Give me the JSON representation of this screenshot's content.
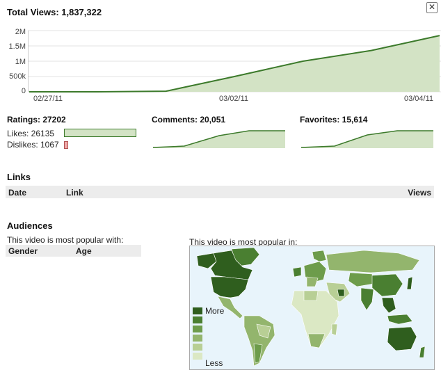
{
  "total_views": {
    "label": "Total Views: 1,837,322",
    "close_icon": "✕",
    "y_ticks": [
      "2M",
      "1.5M",
      "1M",
      "500k",
      "0"
    ],
    "x_ticks": [
      "02/27/11",
      "03/02/11",
      "03/04/11"
    ],
    "fill_color": "#d3e3c5",
    "line_color": "#3c7a2b"
  },
  "chart_data": [
    {
      "type": "area",
      "x": [
        "02/27/11",
        "02/28/11",
        "03/01/11",
        "03/02/11",
        "03/03/11",
        "03/04/11",
        "03/05/11"
      ],
      "y": [
        0,
        0,
        20000,
        500000,
        1000000,
        1350000,
        1837322
      ],
      "ylim": [
        0,
        2000000
      ],
      "grid": true
    }
  ],
  "ratings": {
    "title": "Ratings: 27202",
    "likes_label": "Likes: 26135",
    "dislikes_label": "Dislikes: 1067",
    "likes": 26135,
    "dislikes": 1067,
    "likes_color": "#d3e3c5",
    "dislikes_color": "#f0a9a9"
  },
  "comments": {
    "title": "Comments: 20,051"
  },
  "favorites": {
    "title": "Favorites: 15,614"
  },
  "links": {
    "heading": "Links",
    "col_date": "Date",
    "col_link": "Link",
    "col_views": "Views"
  },
  "audiences": {
    "heading": "Audiences",
    "popular_with": "This video is most popular with:",
    "col_gender": "Gender",
    "col_age": "Age",
    "popular_in": "This video is most popular in:",
    "legend_more": "More",
    "legend_less": "Less",
    "legend_colors": [
      "#2f5e1e",
      "#4a7f31",
      "#6d9c4b",
      "#93b56d",
      "#b8cf95",
      "#dbe8c4"
    ],
    "ocean_color": "#e8f4fb",
    "land_base": "#cfe0b0"
  }
}
